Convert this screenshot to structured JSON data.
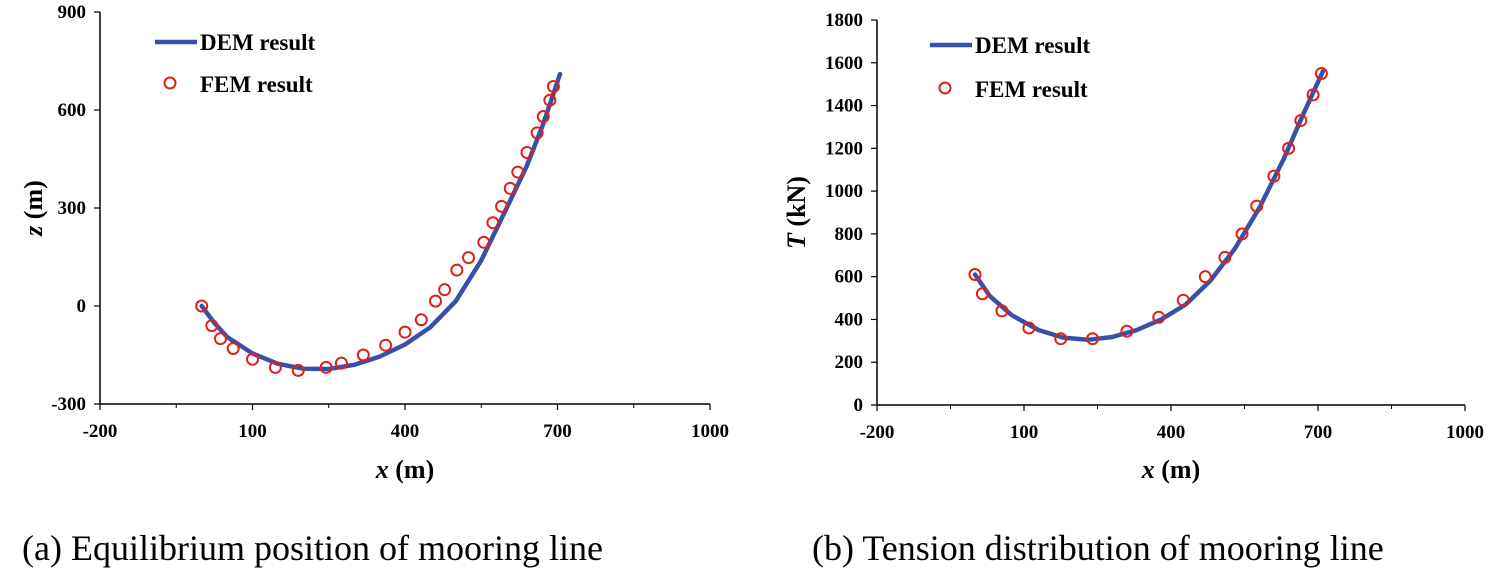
{
  "chart_data": [
    {
      "type": "line",
      "caption": "(a) Equilibrium position of mooring line",
      "xlabel": "x",
      "xunit": " (m)",
      "ylabel": "z",
      "yunit": " (m)",
      "xlim": [
        -200,
        1000
      ],
      "ylim": [
        -300,
        900
      ],
      "xticks": [
        "-200",
        "100",
        "400",
        "700",
        "1000"
      ],
      "xtick_values": [
        -200,
        100,
        400,
        700,
        1000
      ],
      "yticks": [
        "-300",
        "0",
        "300",
        "600",
        "900"
      ],
      "ytick_values": [
        -300,
        0,
        300,
        600,
        900
      ],
      "legend": [
        "DEM result",
        "FEM result"
      ],
      "series": [
        {
          "name": "DEM result",
          "style": "line",
          "color": "#3a4fa8",
          "x": [
            0,
            25,
            50,
            100,
            150,
            200,
            250,
            300,
            350,
            400,
            450,
            500,
            550,
            600,
            640,
            670,
            690,
            705
          ],
          "y": [
            0,
            -52,
            -95,
            -145,
            -177,
            -192,
            -193,
            -180,
            -155,
            -118,
            -65,
            15,
            140,
            300,
            430,
            550,
            640,
            710
          ]
        },
        {
          "name": "FEM result",
          "style": "marker",
          "color": "#e0201b",
          "x": [
            0,
            20,
            37,
            62,
            100,
            145,
            190,
            245,
            275,
            318,
            362,
            400,
            432,
            460,
            478,
            502,
            525,
            555,
            573,
            590,
            607,
            622,
            640,
            660,
            672,
            685,
            692
          ],
          "y": [
            0,
            -60,
            -100,
            -130,
            -163,
            -188,
            -197,
            -188,
            -175,
            -150,
            -120,
            -80,
            -42,
            15,
            50,
            110,
            148,
            195,
            255,
            305,
            360,
            410,
            470,
            530,
            580,
            630,
            672
          ]
        }
      ]
    },
    {
      "type": "line",
      "caption": "(b) Tension distribution of mooring line",
      "xlabel": "x",
      "xunit": " (m)",
      "ylabel": "T",
      "yunit": " (kN)",
      "xlim": [
        -200,
        1000
      ],
      "ylim": [
        0,
        1800
      ],
      "xticks": [
        "-200",
        "100",
        "400",
        "700",
        "1000"
      ],
      "xtick_values": [
        -200,
        100,
        400,
        700,
        1000
      ],
      "yticks": [
        "0",
        "200",
        "400",
        "600",
        "800",
        "1000",
        "1200",
        "1400",
        "1600",
        "1800"
      ],
      "ytick_values": [
        0,
        200,
        400,
        600,
        800,
        1000,
        1200,
        1400,
        1600,
        1800
      ],
      "legend": [
        "DEM result",
        "FEM result"
      ],
      "series": [
        {
          "name": "DEM result",
          "style": "line",
          "color": "#3a4fa8",
          "x": [
            0,
            30,
            75,
            130,
            180,
            230,
            280,
            330,
            380,
            430,
            480,
            530,
            580,
            630,
            670,
            700,
            710
          ],
          "y": [
            610,
            510,
            420,
            350,
            315,
            305,
            318,
            350,
            400,
            470,
            580,
            730,
            920,
            1150,
            1360,
            1510,
            1560
          ]
        },
        {
          "name": "FEM result",
          "style": "marker",
          "color": "#e0201b",
          "x": [
            0,
            15,
            55,
            110,
            175,
            240,
            310,
            375,
            425,
            470,
            510,
            545,
            575,
            610,
            640,
            665,
            690,
            707
          ],
          "y": [
            610,
            520,
            440,
            360,
            310,
            310,
            345,
            410,
            490,
            600,
            690,
            800,
            930,
            1070,
            1200,
            1330,
            1450,
            1550
          ]
        }
      ]
    }
  ]
}
